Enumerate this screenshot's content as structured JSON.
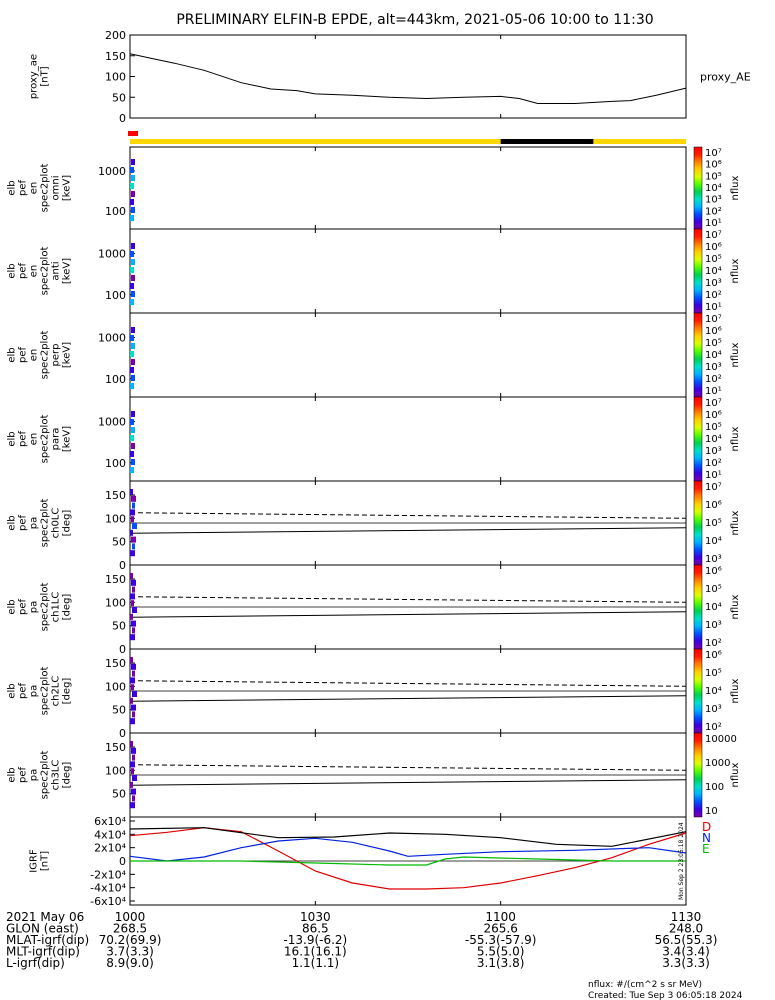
{
  "title": "PRELIMINARY ELFIN-B EPDE, alt=443km, 2021-05-06 10:00 to 11:30",
  "colors": {
    "sunlight": "#ffd700",
    "shadow": "#000000",
    "marker": "#ff0000",
    "bfield_d": "#dd0000",
    "bfield_n": "#0022dd",
    "bfield_e": "#00bb00"
  },
  "chart_data": [
    {
      "type": "line",
      "name": "proxy_ae",
      "ylabel": "proxy_ae\n[nT]",
      "legend": "proxy_AE",
      "ylim": [
        0,
        200
      ],
      "yticks": [
        "0",
        "50",
        "100",
        "150",
        "200"
      ],
      "x": [
        10.0,
        10.05,
        10.12,
        10.2,
        10.3,
        10.38,
        10.45,
        10.5,
        10.6,
        10.7,
        10.8,
        10.9,
        11.0,
        11.05,
        11.1,
        11.2,
        11.3,
        11.35,
        11.42,
        11.5
      ],
      "values": [
        155,
        145,
        132,
        115,
        85,
        70,
        66,
        58,
        55,
        50,
        47,
        50,
        52,
        47,
        35,
        35,
        40,
        42,
        55,
        72
      ]
    },
    {
      "type": "heatmap",
      "name": "elb_pef_en_spec2plot_omni",
      "ylabel": "elb\npef\nen\nspec2plot\nomni\n[keV]",
      "yticks": [
        "100",
        "1000"
      ],
      "colorbar_label": "nflux",
      "colorbar_ticks": [
        "10^1",
        "10^2",
        "10^3",
        "10^4",
        "10^5",
        "10^6",
        "10^7"
      ],
      "data_time": "10:00-10:01"
    },
    {
      "type": "heatmap",
      "name": "elb_pef_en_spec2plot_anti",
      "ylabel": "elb\npef\nen\nspec2plot\nanti\n[keV]",
      "yticks": [
        "100",
        "1000"
      ],
      "colorbar_label": "nflux",
      "colorbar_ticks": [
        "10^1",
        "10^2",
        "10^3",
        "10^4",
        "10^5",
        "10^6",
        "10^7"
      ],
      "data_time": "10:00-10:01"
    },
    {
      "type": "heatmap",
      "name": "elb_pef_en_spec2plot_perp",
      "ylabel": "elb\npef\nen\nspec2plot\nperp\n[keV]",
      "yticks": [
        "100",
        "1000"
      ],
      "colorbar_label": "nflux",
      "colorbar_ticks": [
        "10^1",
        "10^2",
        "10^3",
        "10^4",
        "10^5",
        "10^6",
        "10^7"
      ],
      "data_time": "10:00-10:01"
    },
    {
      "type": "heatmap",
      "name": "elb_pef_en_spec2plot_para",
      "ylabel": "elb\npef\nen\nspec2plot\npara\n[keV]",
      "yticks": [
        "100",
        "1000"
      ],
      "colorbar_label": "nflux",
      "colorbar_ticks": [
        "10^1",
        "10^2",
        "10^3",
        "10^4",
        "10^5",
        "10^6",
        "10^7"
      ],
      "data_time": "10:00-10:01"
    },
    {
      "type": "heatmap",
      "name": "elb_pef_pa_spec2plot_ch0LC",
      "ylabel": "elb\npef\npa\nspec2plot\nch0LC\n[deg]",
      "yticks": [
        "0",
        "50",
        "100",
        "150"
      ],
      "ylim": [
        0,
        180
      ],
      "colorbar_label": "nflux",
      "colorbar_ticks": [
        "10^3",
        "10^4",
        "10^5",
        "10^6",
        "10^7"
      ],
      "loss_cone_deg": {
        "x": [
          10.0,
          11.5
        ],
        "values": [
          68,
          80
        ]
      },
      "anti_loss_cone_deg": {
        "x": [
          10.0,
          11.5
        ],
        "values": [
          112,
          100
        ]
      },
      "ninety_deg": 90
    },
    {
      "type": "heatmap",
      "name": "elb_pef_pa_spec2plot_ch1LC",
      "ylabel": "elb\npef\npa\nspec2plot\nch1LC\n[deg]",
      "yticks": [
        "0",
        "50",
        "100",
        "150"
      ],
      "ylim": [
        0,
        180
      ],
      "colorbar_label": "nflux",
      "colorbar_ticks": [
        "10^2",
        "10^3",
        "10^4",
        "10^5",
        "10^6"
      ],
      "loss_cone_deg": {
        "x": [
          10.0,
          11.5
        ],
        "values": [
          68,
          80
        ]
      },
      "anti_loss_cone_deg": {
        "x": [
          10.0,
          11.5
        ],
        "values": [
          112,
          100
        ]
      },
      "ninety_deg": 90
    },
    {
      "type": "heatmap",
      "name": "elb_pef_pa_spec2plot_ch2LC",
      "ylabel": "elb\npef\npa\nspec2plot\nch2LC\n[deg]",
      "yticks": [
        "0",
        "50",
        "100",
        "150"
      ],
      "ylim": [
        0,
        180
      ],
      "colorbar_label": "nflux",
      "colorbar_ticks": [
        "10^2",
        "10^3",
        "10^4",
        "10^5",
        "10^6"
      ],
      "loss_cone_deg": {
        "x": [
          10.0,
          11.5
        ],
        "values": [
          68,
          80
        ]
      },
      "anti_loss_cone_deg": {
        "x": [
          10.0,
          11.5
        ],
        "values": [
          112,
          100
        ]
      },
      "ninety_deg": 90
    },
    {
      "type": "heatmap",
      "name": "elb_pef_pa_spec2plot_ch3LC",
      "ylabel": "elb\npef\npa\nspec2plot\nch3LC\n[deg]",
      "yticks": [
        "50",
        "100",
        "150"
      ],
      "ylim": [
        0,
        180
      ],
      "colorbar_label": "nflux",
      "colorbar_ticks": [
        "10",
        "100",
        "1000",
        "10000"
      ],
      "loss_cone_deg": {
        "x": [
          10.0,
          11.5
        ],
        "values": [
          68,
          80
        ]
      },
      "anti_loss_cone_deg": {
        "x": [
          10.0,
          11.5
        ],
        "values": [
          112,
          100
        ]
      },
      "ninety_deg": 90
    },
    {
      "type": "line",
      "name": "IGRF",
      "ylabel": "IGRF\n[nT]",
      "ylim": [
        -60000,
        60000
      ],
      "yticks": [
        "-6x10^4",
        "-4x10^4",
        "-2x10^4",
        "0",
        "2x10^4",
        "4x10^4",
        "6x10^4"
      ],
      "series": [
        {
          "name": "D",
          "color": "#dd0000",
          "x": [
            10.0,
            10.1,
            10.2,
            10.3,
            10.4,
            10.5,
            10.6,
            10.7,
            10.8,
            10.9,
            11.0,
            11.1,
            11.2,
            11.3,
            11.4,
            11.5
          ],
          "values": [
            38000,
            43000,
            50000,
            44000,
            15000,
            -15000,
            -33000,
            -42000,
            -42000,
            -40000,
            -33000,
            -22000,
            -10000,
            5000,
            25000,
            42000
          ]
        },
        {
          "name": "N",
          "color": "#0022dd",
          "x": [
            10.0,
            10.1,
            10.2,
            10.3,
            10.4,
            10.5,
            10.6,
            10.7,
            10.75,
            10.85,
            11.0,
            11.2,
            11.4,
            11.5
          ],
          "values": [
            7000,
            0,
            6000,
            20000,
            30000,
            34000,
            28000,
            15000,
            7000,
            10000,
            14000,
            16000,
            20000,
            12000
          ]
        },
        {
          "name": "E",
          "color": "#00bb00",
          "x": [
            10.0,
            10.3,
            10.5,
            10.7,
            10.8,
            10.85,
            10.9,
            11.1,
            11.3,
            11.5
          ],
          "values": [
            0,
            0,
            -3000,
            -6000,
            -6000,
            3000,
            6000,
            3000,
            0,
            0
          ]
        },
        {
          "name": "|B|",
          "color": "#000000",
          "x": [
            10.0,
            10.2,
            10.4,
            10.55,
            10.7,
            10.85,
            11.0,
            11.15,
            11.3,
            11.5
          ],
          "values": [
            48000,
            50000,
            35000,
            36000,
            42000,
            40000,
            35000,
            25000,
            22000,
            44000
          ]
        }
      ],
      "legend": [
        "D",
        "N",
        "E"
      ]
    }
  ],
  "x_axis": {
    "labels": [
      "1000",
      "1030",
      "1100",
      "1130"
    ],
    "rows": [
      {
        "label": "2021 May 06",
        "values": [
          "",
          "",
          "",
          ""
        ]
      },
      {
        "label": "GLON (east)",
        "values": [
          "268.5",
          "86.5",
          "265.6",
          "248.0"
        ]
      },
      {
        "label": "MLAT-igrf(dip)",
        "values": [
          "70.2(69.9)",
          "-13.9(-6.2)",
          "-55.3(-57.9)",
          "56.5(55.3)"
        ]
      },
      {
        "label": "MLT-igrf(dip)",
        "values": [
          "3.7(3.3)",
          "16.1(16.1)",
          "5.5(5.0)",
          "3.4(3.4)"
        ]
      },
      {
        "label": "L-igrf(dip)",
        "values": [
          "8.9(9.0)",
          "1.1(1.1)",
          "3.1(3.8)",
          "3.3(3.3)"
        ]
      }
    ]
  },
  "footer": {
    "nflux_units": "nflux: #/(cm^2 s sr MeV)",
    "created": "Created: Tue Sep  3 06:05:18 2024",
    "side_stamp": "Mon Sep  2 23:05:18 2024"
  }
}
